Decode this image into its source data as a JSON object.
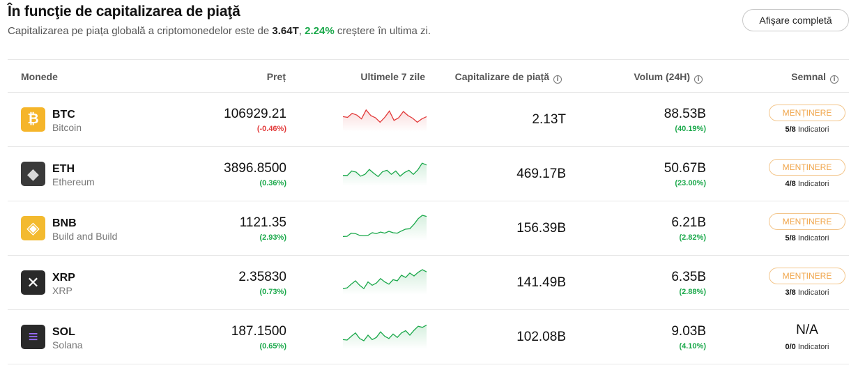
{
  "header": {
    "title": "În funcţie de capitalizarea de piaţă",
    "subtitle_pre": "Capitalizarea pe piața globală a criptomonedelor este de ",
    "global_cap": "3.64T",
    "sep": ", ",
    "global_change": "2.24%",
    "subtitle_post": " creștere în ultima zi.",
    "show_all_button": "Afișare completă"
  },
  "columns": {
    "coins": "Monede",
    "price": "Preț",
    "last7": "Ultimele 7 zile",
    "market_cap": "Capitalizare de piață",
    "volume": "Volum (24H)",
    "signal": "Semnal",
    "info_glyph": "i"
  },
  "colors": {
    "up": "#1aa84a",
    "down": "#e23b3b",
    "signal_border": "#f3c58a",
    "signal_text": "#f0a54a"
  },
  "rows": [
    {
      "symbol": "BTC",
      "name": "Bitcoin",
      "icon": "bitcoin-icon",
      "icon_glyph": "₿",
      "price": "106929.21",
      "price_change": "(-0.46%)",
      "trend": "down",
      "market_cap": "2.13T",
      "volume": "88.53B",
      "volume_change": "(40.19%)",
      "signal": "MENȚINERE",
      "indicators": "5/8",
      "indicators_label": " Indicatori",
      "spark": [
        0.55,
        0.52,
        0.7,
        0.62,
        0.45,
        0.85,
        0.6,
        0.5,
        0.3,
        0.52,
        0.8,
        0.38,
        0.5,
        0.78,
        0.6,
        0.48,
        0.3,
        0.45,
        0.55
      ]
    },
    {
      "symbol": "ETH",
      "name": "Ethereum",
      "icon": "ethereum-icon",
      "icon_glyph": "◆",
      "price": "3896.8500",
      "price_change": "(0.36%)",
      "trend": "up",
      "market_cap": "469.17B",
      "volume": "50.67B",
      "volume_change": "(23.00%)",
      "signal": "MENȚINERE",
      "indicators": "4/8",
      "indicators_label": " Indicatori",
      "spark": [
        0.35,
        0.35,
        0.55,
        0.5,
        0.32,
        0.4,
        0.62,
        0.45,
        0.3,
        0.52,
        0.58,
        0.4,
        0.55,
        0.32,
        0.48,
        0.58,
        0.4,
        0.6,
        0.9,
        0.82
      ]
    },
    {
      "symbol": "BNB",
      "name": "Build and Build",
      "icon": "bnb-icon",
      "icon_glyph": "◈",
      "price": "1121.35",
      "price_change": "(2.93%)",
      "trend": "up",
      "market_cap": "156.39B",
      "volume": "6.21B",
      "volume_change": "(2.82%)",
      "signal": "MENȚINERE",
      "indicators": "5/8",
      "indicators_label": " Indicatori",
      "spark": [
        0.05,
        0.06,
        0.2,
        0.18,
        0.1,
        0.08,
        0.1,
        0.22,
        0.18,
        0.25,
        0.2,
        0.28,
        0.22,
        0.2,
        0.3,
        0.38,
        0.4,
        0.6,
        0.85,
        1.0,
        0.95
      ]
    },
    {
      "symbol": "XRP",
      "name": "XRP",
      "icon": "xrp-icon",
      "icon_glyph": "✕",
      "price": "2.35830",
      "price_change": "(0.73%)",
      "trend": "up",
      "market_cap": "141.49B",
      "volume": "6.35B",
      "volume_change": "(2.88%)",
      "signal": "MENȚINERE",
      "indicators": "3/8",
      "indicators_label": " Indicatori",
      "spark": [
        0.15,
        0.18,
        0.35,
        0.5,
        0.3,
        0.15,
        0.45,
        0.3,
        0.4,
        0.6,
        0.45,
        0.35,
        0.55,
        0.5,
        0.75,
        0.65,
        0.85,
        0.72,
        0.88,
        1.0,
        0.9
      ]
    },
    {
      "symbol": "SOL",
      "name": "Solana",
      "icon": "solana-icon",
      "icon_glyph": "≡",
      "price": "187.1500",
      "price_change": "(0.65%)",
      "trend": "up",
      "market_cap": "102.08B",
      "volume": "9.03B",
      "volume_change": "(4.10%)",
      "signal": "N/A",
      "indicators": "0/0",
      "indicators_label": " Indicatori",
      "spark": [
        0.3,
        0.28,
        0.45,
        0.6,
        0.35,
        0.25,
        0.5,
        0.3,
        0.4,
        0.65,
        0.45,
        0.35,
        0.55,
        0.4,
        0.6,
        0.7,
        0.5,
        0.72,
        0.9,
        0.85,
        0.95
      ]
    }
  ]
}
